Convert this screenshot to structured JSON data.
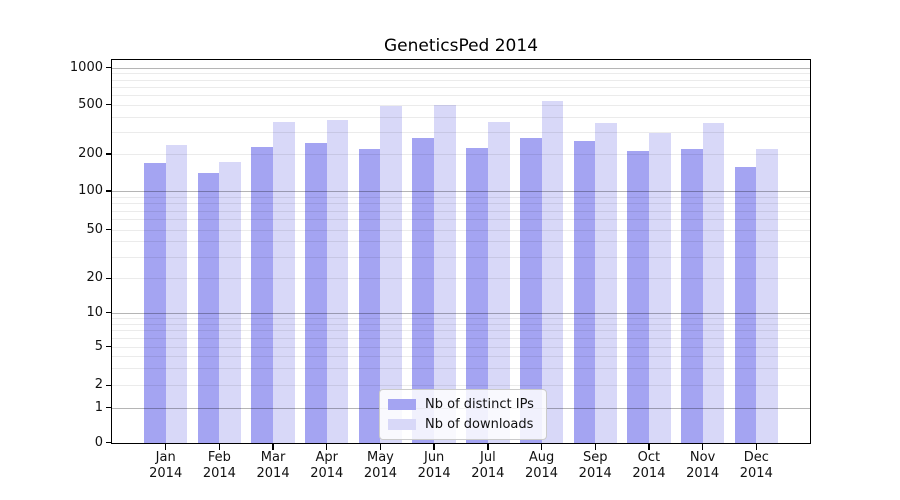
{
  "chart_data": {
    "type": "bar",
    "title": "GeneticsPed 2014",
    "categories": [
      "Jan",
      "Feb",
      "Mar",
      "Apr",
      "May",
      "Jun",
      "Jul",
      "Aug",
      "Sep",
      "Oct",
      "Nov",
      "Dec"
    ],
    "category_year": "2014",
    "series": [
      {
        "name": "Nb of distinct IPs",
        "color": "#a4a4f2",
        "values": [
          170,
          141,
          226,
          245,
          218,
          267,
          223,
          268,
          255,
          211,
          218,
          156
        ]
      },
      {
        "name": "Nb of downloads",
        "color": "#d8d8f8",
        "values": [
          235,
          173,
          361,
          377,
          490,
          498,
          363,
          540,
          357,
          293,
          356,
          220
        ]
      }
    ],
    "xlabel": "",
    "ylabel": "",
    "yscale": "log-with-zero",
    "ylim": [
      0,
      1150
    ],
    "y_ticks": [
      0,
      1,
      2,
      5,
      10,
      20,
      50,
      100,
      200,
      500,
      1000
    ],
    "grid": "horizontal major (decades) + minor, drawn above bars",
    "legend_position": "inside bottom-center"
  }
}
